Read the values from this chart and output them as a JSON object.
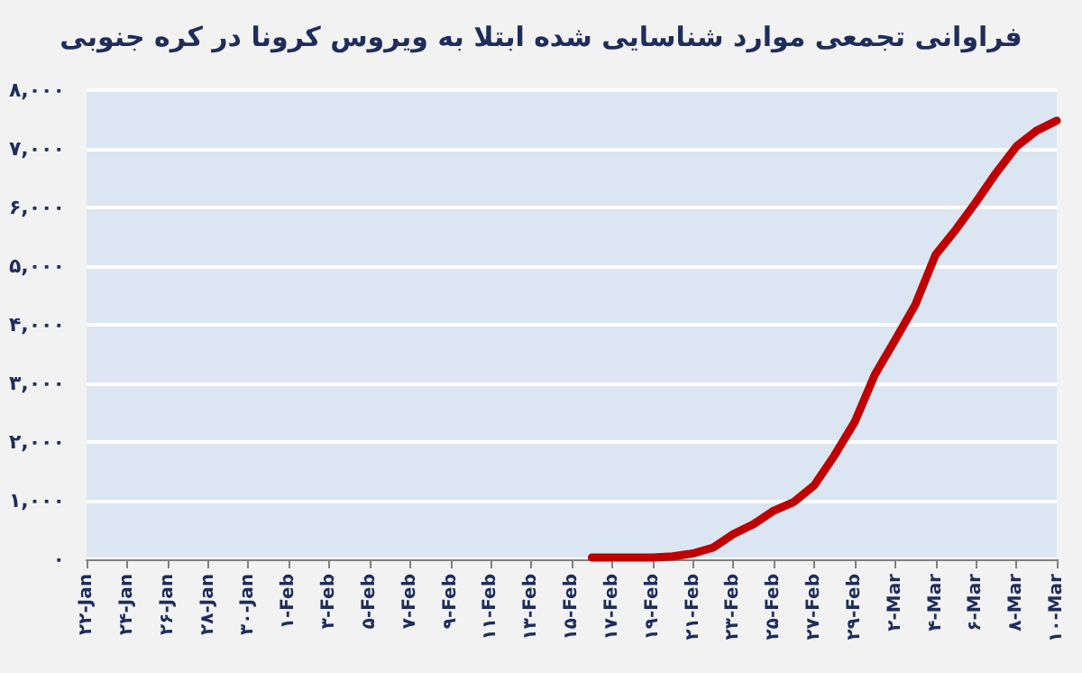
{
  "chart_data": {
    "type": "line",
    "title": "فراوانی تجمعی موارد شناسایی شده ابتلا به ویروس کرونا در کره جنوبی",
    "categories": [
      "۲۲-Jan",
      null,
      "۲۴-Jan",
      null,
      "۲۶-Jan",
      null,
      "۲۸-Jan",
      null,
      "۳۰-Jan",
      null,
      "۱-Feb",
      null,
      "۳-Feb",
      null,
      "۵-Feb",
      null,
      "۷-Feb",
      null,
      "۹-Feb",
      null,
      "۱۱-Feb",
      null,
      "۱۳-Feb",
      null,
      "۱۵-Feb",
      null,
      "۱۷-Feb",
      null,
      "۱۹-Feb",
      null,
      "۲۱-Feb",
      null,
      "۲۳-Feb",
      null,
      "۲۵-Feb",
      null,
      "۲۷-Feb",
      null,
      "۲۹-Feb",
      null,
      "۲-Mar",
      null,
      "۴-Mar",
      null,
      "۶-Mar",
      null,
      "۸-Mar",
      null,
      "۱۰-Mar"
    ],
    "series": [
      {
        "color": "#c00000",
        "values": [
          null,
          null,
          null,
          null,
          null,
          null,
          null,
          null,
          null,
          null,
          null,
          null,
          null,
          null,
          null,
          null,
          null,
          null,
          null,
          null,
          null,
          null,
          null,
          null,
          null,
          30,
          30,
          30,
          30,
          50,
          100,
          200,
          430,
          600,
          830,
          980,
          1260,
          1770,
          2340,
          3150,
          3740,
          4340,
          5190,
          5620,
          6090,
          6590,
          7040,
          7310,
          7480
        ]
      }
    ],
    "ylim": [
      0,
      8000
    ],
    "yticks": [
      {
        "value": 0,
        "label": "۰"
      },
      {
        "value": 1000,
        "label": "۱,۰۰۰"
      },
      {
        "value": 2000,
        "label": "۲,۰۰۰"
      },
      {
        "value": 3000,
        "label": "۳,۰۰۰"
      },
      {
        "value": 4000,
        "label": "۴,۰۰۰"
      },
      {
        "value": 5000,
        "label": "۵,۰۰۰"
      },
      {
        "value": 6000,
        "label": "۶,۰۰۰"
      },
      {
        "value": 7000,
        "label": "۷,۰۰۰"
      },
      {
        "value": 8000,
        "label": "۸,۰۰۰"
      }
    ],
    "grid": "y",
    "marker": "none",
    "line_style": "solid"
  }
}
